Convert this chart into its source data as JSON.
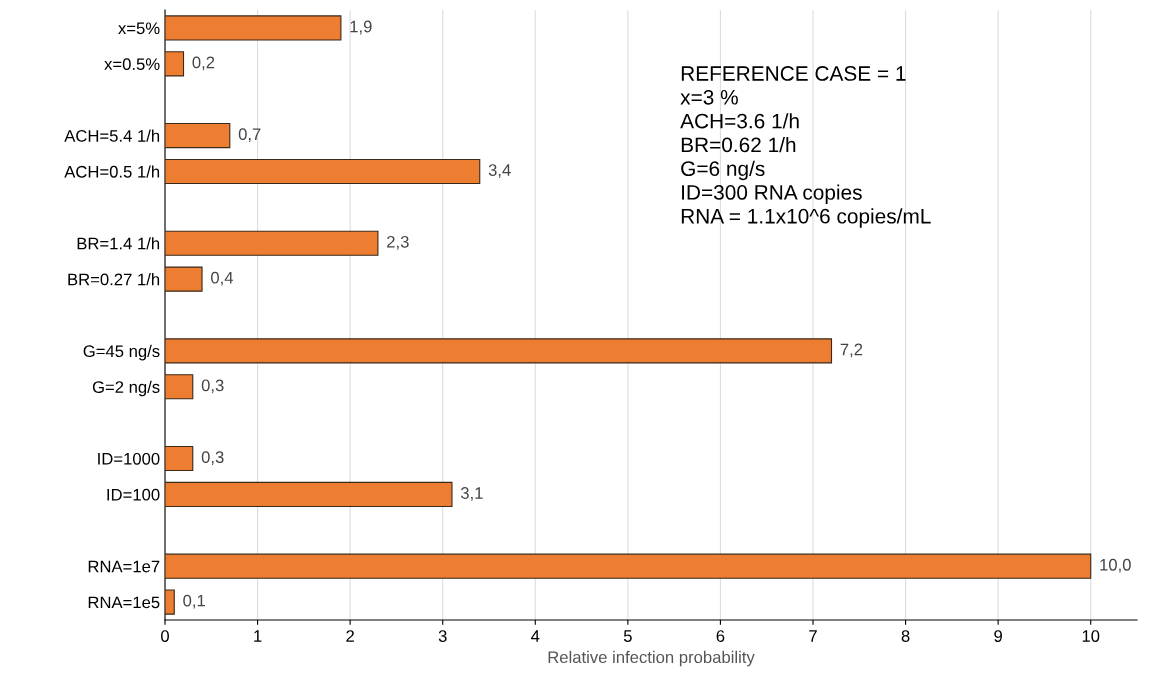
{
  "chart_data": {
    "type": "bar",
    "orientation": "horizontal",
    "categories": [
      "x=5%",
      "x=0.5%",
      null,
      "ACH=5.4 1/h",
      "ACH=0.5 1/h",
      null,
      "BR=1.4 1/h",
      "BR=0.27 1/h",
      null,
      "G=45 ng/s",
      "G=2 ng/s",
      null,
      "ID=1000",
      "ID=100",
      null,
      "RNA=1e7",
      "RNA=1e5"
    ],
    "values": [
      1.9,
      0.2,
      null,
      0.7,
      3.4,
      null,
      2.3,
      0.4,
      null,
      7.2,
      0.3,
      null,
      0.3,
      3.1,
      null,
      10.0,
      0.1
    ],
    "value_labels": [
      "1,9",
      "0,2",
      null,
      "0,7",
      "3,4",
      null,
      "2,3",
      "0,4",
      null,
      "7,2",
      "0,3",
      null,
      "0,3",
      "3,1",
      null,
      "10,0",
      "0,1"
    ],
    "color": "#ed7d31",
    "xlabel": "Relative infection probability",
    "xlim": [
      0,
      10.5
    ],
    "xticks": [
      0,
      1,
      2,
      3,
      4,
      5,
      6,
      7,
      8,
      9,
      10
    ],
    "grid": "x",
    "annotations": [
      "REFERENCE CASE = 1",
      "x=3 %",
      "ACH=3.6 1/h",
      "BR=0.62 1/h",
      "G=6 ng/s",
      "ID=300 RNA copies",
      "RNA = 1.1x10^6 copies/mL"
    ]
  }
}
